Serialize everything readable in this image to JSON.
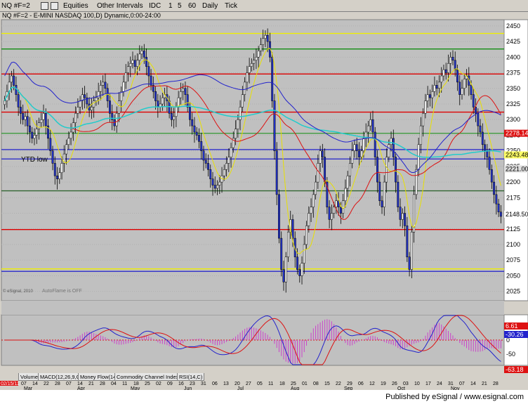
{
  "toolbar": {
    "symbol": "NQ #F=2",
    "equities_label": "Equities",
    "other_intervals_label": "Other Intervals",
    "idc_label": "IDC",
    "intervals": [
      "1",
      "5",
      "60",
      "Daily",
      "Tick"
    ]
  },
  "legend": {
    "title": "NQ #F=2 - E-MINI NASDAQ 100,D) Dynamic,0:00-24:00"
  },
  "chart_data": [
    {
      "type": "candlestick",
      "title": "NQ #F=2 - E-MINI NASDAQ 100,D) Dynamic,0:00-24:00",
      "ylim": [
        2010,
        2460
      ],
      "y_ticks": [
        2025,
        2050,
        2075,
        2100,
        2125,
        2150,
        2175,
        2200,
        2225,
        2250,
        2275,
        2300,
        2325,
        2350,
        2375,
        2400,
        2425,
        2450
      ],
      "x_tick_labels": [
        "07",
        "14",
        "22",
        "28",
        "07",
        "14",
        "21",
        "28",
        "04",
        "11",
        "18",
        "25",
        "02",
        "09",
        "16",
        "23",
        "31",
        "06",
        "13",
        "20",
        "27",
        "05",
        "11",
        "18",
        "25",
        "01",
        "08",
        "15",
        "22",
        "29",
        "06",
        "12",
        "19",
        "26",
        "03",
        "10",
        "17",
        "24",
        "31",
        "07",
        "14",
        "21",
        "28"
      ],
      "month_labels": [
        "Mar",
        "Apr",
        "May",
        "Jun",
        "Jul",
        "Aug",
        "Sep",
        "Oct",
        "Nov"
      ],
      "start_date_label": "02/15/11",
      "closes": [
        2330,
        2345,
        2360,
        2370,
        2355,
        2340,
        2320,
        2310,
        2300,
        2305,
        2290,
        2280,
        2270,
        2275,
        2285,
        2295,
        2300,
        2310,
        2290,
        2270,
        2250,
        2230,
        2210,
        2205,
        2215,
        2230,
        2245,
        2260,
        2270,
        2280,
        2295,
        2310,
        2320,
        2330,
        2340,
        2335,
        2325,
        2315,
        2320,
        2330,
        2335,
        2345,
        2355,
        2360,
        2350,
        2330,
        2310,
        2300,
        2290,
        2310,
        2330,
        2345,
        2360,
        2375,
        2385,
        2390,
        2395,
        2385,
        2395,
        2405,
        2410,
        2400,
        2385,
        2370,
        2355,
        2345,
        2330,
        2320,
        2325,
        2335,
        2340,
        2330,
        2310,
        2300,
        2305,
        2320,
        2335,
        2345,
        2350,
        2340,
        2320,
        2300,
        2290,
        2280,
        2275,
        2265,
        2250,
        2235,
        2230,
        2220,
        2205,
        2195,
        2190,
        2195,
        2200,
        2210,
        2220,
        2230,
        2240,
        2255,
        2270,
        2285,
        2300,
        2320,
        2340,
        2360,
        2375,
        2385,
        2390,
        2395,
        2400,
        2410,
        2420,
        2430,
        2435,
        2425,
        2400,
        2330,
        2250,
        2180,
        2110,
        2060,
        2040,
        2080,
        2120,
        2140,
        2110,
        2080,
        2060,
        2050,
        2070,
        2100,
        2130,
        2150,
        2160,
        2180,
        2200,
        2230,
        2250,
        2240,
        2200,
        2160,
        2140,
        2150,
        2160,
        2170,
        2160,
        2150,
        2170,
        2190,
        2210,
        2230,
        2250,
        2260,
        2250,
        2240,
        2250,
        2270,
        2280,
        2290,
        2300,
        2280,
        2240,
        2200,
        2170,
        2160,
        2200,
        2240,
        2260,
        2270,
        2240,
        2200,
        2160,
        2140,
        2150,
        2130,
        2080,
        2060,
        2120,
        2180,
        2220,
        2260,
        2290,
        2310,
        2330,
        2340,
        2335,
        2345,
        2355,
        2350,
        2360,
        2370,
        2380,
        2375,
        2390,
        2400,
        2395,
        2380,
        2360,
        2340,
        2350,
        2365,
        2370,
        2355,
        2340,
        2320,
        2310,
        2290,
        2280,
        2260,
        2250,
        2240,
        2220,
        2200,
        2180,
        2165,
        2152,
        2145
      ],
      "price_labels": [
        {
          "text": "2278.14",
          "value": 2278.14,
          "color": "#dd1111",
          "text_color": "#ffffff"
        },
        {
          "text": "2243.48",
          "value": 2243.48,
          "color": "#ffff66",
          "text_color": "#000000"
        },
        {
          "text": "2221.00",
          "value": 2221.0,
          "color": "#dddddd",
          "text_color": "#000000"
        },
        {
          "text": "2148.50",
          "value": 2148.5,
          "color": "#ffffff",
          "text_color": "#000000"
        }
      ],
      "horizontal_levels": [
        {
          "value": 2438,
          "color": "#eeee00"
        },
        {
          "value": 2413,
          "color": "#008800"
        },
        {
          "value": 2373,
          "color": "#dd0000"
        },
        {
          "value": 2312,
          "color": "#dd0000"
        },
        {
          "value": 2278,
          "color": "#339933"
        },
        {
          "value": 2252,
          "color": "#2222cc"
        },
        {
          "value": 2237,
          "color": "#2222cc"
        },
        {
          "value": 2186,
          "color": "#336633"
        },
        {
          "value": 2124,
          "color": "#dd0000"
        },
        {
          "value": 2061,
          "color": "#eeee00"
        },
        {
          "value": 2057,
          "color": "#2222cc"
        }
      ],
      "ytd_low_label": "YTD low",
      "watermark": "AutoFlame is OFF",
      "copyright": "© eSignal, 2010"
    },
    {
      "type": "line",
      "title": "MACD(12,26,9,C)",
      "series": [
        {
          "name": "MACD",
          "color": "#2222cc"
        },
        {
          "name": "Signal",
          "color": "#dd1111"
        },
        {
          "name": "Histogram",
          "color": "#cc44cc"
        }
      ],
      "price_labels": [
        {
          "text": "6.61",
          "value": 6.61,
          "color": "#dd1111",
          "text_color": "#ffffff"
        },
        {
          "text": "-30.26",
          "value": -30.26,
          "color": "#2222cc",
          "text_color": "#ffffff"
        }
      ],
      "y_ticks": [
        50,
        0,
        -50
      ],
      "lower_label": {
        "text": "-63.18",
        "color": "#dd1111",
        "text_color": "#ffffff"
      }
    }
  ],
  "indicator_tabs": [
    "Volume",
    "MACD(12,26,9,C)",
    "Money Flow(14)",
    "Commodity Channel Index(23,C)",
    "RSI(14,C)"
  ],
  "footer": {
    "text": "Published by eSignal / www.esignal.com"
  },
  "colors": {
    "chart_bg": "#c0c0c0",
    "candle_up": "#ffffff",
    "candle_down": "#2233cc",
    "accent": "#2222cc"
  }
}
